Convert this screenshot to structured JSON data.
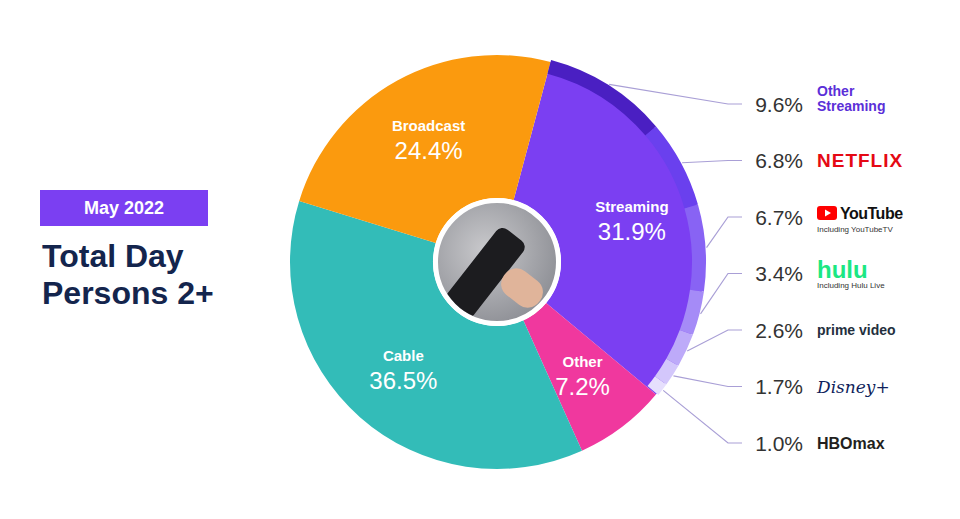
{
  "chart_data": [
    {
      "type": "pie",
      "title": "Total Day Persons 2+",
      "subtitle": "May 2022",
      "categories": [
        "Streaming",
        "Other",
        "Cable",
        "Broadcast"
      ],
      "values": [
        31.9,
        7.2,
        36.5,
        24.4
      ],
      "value_labels": [
        "31.9%",
        "7.2%",
        "36.5%",
        "24.4%"
      ],
      "colors": [
        "#7b3ff2",
        "#f0389e",
        "#33bcb8",
        "#fb9a0e"
      ],
      "data_labels": true
    },
    {
      "type": "pie",
      "categories": [
        "Other Streaming",
        "NETFLIX",
        "YouTube",
        "hulu",
        "prime video",
        "Disney+",
        "HBOmax"
      ],
      "values": [
        9.6,
        6.8,
        6.7,
        3.4,
        2.6,
        1.7,
        1.0
      ],
      "value_labels": [
        "9.6%",
        "6.8%",
        "6.7%",
        "3.4%",
        "2.6%",
        "1.7%",
        "1.0%"
      ],
      "colors": [
        "#4a1fc2",
        "#6a40ee",
        "#8863f4",
        "#a58bf7",
        "#bdaaf9",
        "#d3c7fb",
        "#e6dffd"
      ],
      "annotations": [
        {
          "category": "YouTube",
          "text": "Including YouTubeTV"
        },
        {
          "category": "hulu",
          "text": "Including Hulu Live"
        }
      ],
      "data_labels": true
    }
  ]
}
